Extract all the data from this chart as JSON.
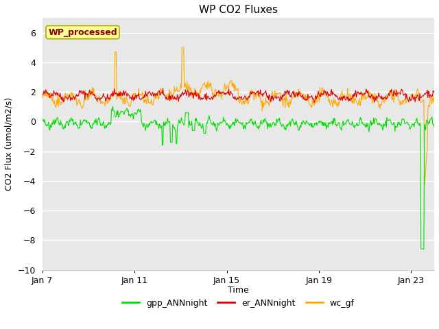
{
  "title": "WP CO2 Fluxes",
  "xlabel": "Time",
  "ylabel": "CO2 Flux (umol/m2/s)",
  "ylim": [
    -10,
    7
  ],
  "yticks": [
    -10,
    -8,
    -6,
    -4,
    -2,
    0,
    2,
    4,
    6
  ],
  "xlim_days": [
    0,
    17
  ],
  "xtick_labels": [
    "Jan 7",
    "Jan 11",
    "Jan 15",
    "Jan 19",
    "Jan 23"
  ],
  "xtick_positions": [
    0,
    4,
    8,
    12,
    16
  ],
  "plot_bg_color": "#e8e8e8",
  "fig_bg_color": "#ffffff",
  "annotation_text": "WP_processed",
  "annotation_color": "#8b0000",
  "annotation_bg": "#ffff99",
  "annotation_edge": "#aaaa00",
  "legend_entries": [
    "gpp_ANNnight",
    "er_ANNnight",
    "wc_gf"
  ],
  "legend_colors": [
    "#00dd00",
    "#dd0000",
    "#ffaa00"
  ],
  "green_color": "#00dd00",
  "red_color": "#dd0000",
  "orange_color": "#ffaa00",
  "n_points": 680,
  "seed": 42
}
